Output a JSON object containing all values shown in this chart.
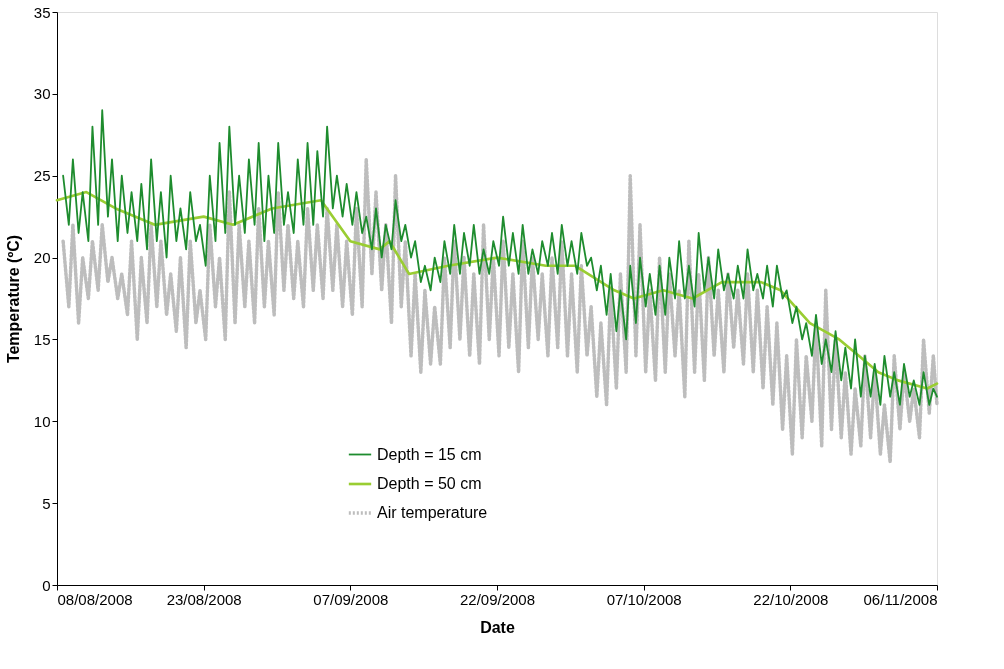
{
  "chart_data": {
    "type": "line",
    "xlabel": "Date",
    "ylabel": "Temperature (ºC)",
    "x": [
      "2008-08-08T15:00",
      "2008-08-09T05:00",
      "2008-08-09T15:00",
      "2008-08-10T05:00",
      "2008-08-10T15:00",
      "2008-08-11T05:00",
      "2008-08-11T15:00",
      "2008-08-12T05:00",
      "2008-08-12T15:00",
      "2008-08-13T05:00",
      "2008-08-13T15:00",
      "2008-08-14T05:00",
      "2008-08-14T15:00",
      "2008-08-15T05:00",
      "2008-08-15T15:00",
      "2008-08-16T05:00",
      "2008-08-16T15:00",
      "2008-08-17T05:00",
      "2008-08-17T15:00",
      "2008-08-18T05:00",
      "2008-08-18T15:00",
      "2008-08-19T05:00",
      "2008-08-19T15:00",
      "2008-08-20T05:00",
      "2008-08-20T15:00",
      "2008-08-21T05:00",
      "2008-08-21T15:00",
      "2008-08-22T05:00",
      "2008-08-22T15:00",
      "2008-08-23T05:00",
      "2008-08-23T15:00",
      "2008-08-24T05:00",
      "2008-08-24T15:00",
      "2008-08-25T05:00",
      "2008-08-25T15:00",
      "2008-08-26T05:00",
      "2008-08-26T15:00",
      "2008-08-27T05:00",
      "2008-08-27T15:00",
      "2008-08-28T05:00",
      "2008-08-28T15:00",
      "2008-08-29T05:00",
      "2008-08-29T15:00",
      "2008-08-30T05:00",
      "2008-08-30T15:00",
      "2008-08-31T05:00",
      "2008-08-31T15:00",
      "2008-09-01T05:00",
      "2008-09-01T15:00",
      "2008-09-02T05:00",
      "2008-09-02T15:00",
      "2008-09-03T05:00",
      "2008-09-03T15:00",
      "2008-09-04T05:00",
      "2008-09-04T15:00",
      "2008-09-05T05:00",
      "2008-09-05T15:00",
      "2008-09-06T05:00",
      "2008-09-06T15:00",
      "2008-09-07T05:00",
      "2008-09-07T15:00",
      "2008-09-08T05:00",
      "2008-09-08T15:00",
      "2008-09-09T05:00",
      "2008-09-09T15:00",
      "2008-09-10T05:00",
      "2008-09-10T15:00",
      "2008-09-11T05:00",
      "2008-09-11T15:00",
      "2008-09-12T05:00",
      "2008-09-12T15:00",
      "2008-09-13T05:00",
      "2008-09-13T15:00",
      "2008-09-14T05:00",
      "2008-09-14T15:00",
      "2008-09-15T05:00",
      "2008-09-15T15:00",
      "2008-09-16T05:00",
      "2008-09-16T15:00",
      "2008-09-17T05:00",
      "2008-09-17T15:00",
      "2008-09-18T05:00",
      "2008-09-18T15:00",
      "2008-09-19T05:00",
      "2008-09-19T15:00",
      "2008-09-20T05:00",
      "2008-09-20T15:00",
      "2008-09-21T05:00",
      "2008-09-21T15:00",
      "2008-09-22T05:00",
      "2008-09-22T15:00",
      "2008-09-23T05:00",
      "2008-09-23T15:00",
      "2008-09-24T05:00",
      "2008-09-24T15:00",
      "2008-09-25T05:00",
      "2008-09-25T15:00",
      "2008-09-26T05:00",
      "2008-09-26T15:00",
      "2008-09-27T05:00",
      "2008-09-27T15:00",
      "2008-09-28T05:00",
      "2008-09-28T15:00",
      "2008-09-29T05:00",
      "2008-09-29T15:00",
      "2008-09-30T05:00",
      "2008-09-30T15:00",
      "2008-10-01T05:00",
      "2008-10-01T15:00",
      "2008-10-02T05:00",
      "2008-10-02T15:00",
      "2008-10-03T05:00",
      "2008-10-03T15:00",
      "2008-10-04T05:00",
      "2008-10-04T15:00",
      "2008-10-05T05:00",
      "2008-10-05T15:00",
      "2008-10-06T05:00",
      "2008-10-06T15:00",
      "2008-10-07T05:00",
      "2008-10-07T15:00",
      "2008-10-08T05:00",
      "2008-10-08T15:00",
      "2008-10-09T05:00",
      "2008-10-09T15:00",
      "2008-10-10T05:00",
      "2008-10-10T15:00",
      "2008-10-11T05:00",
      "2008-10-11T15:00",
      "2008-10-12T05:00",
      "2008-10-12T15:00",
      "2008-10-13T05:00",
      "2008-10-13T15:00",
      "2008-10-14T05:00",
      "2008-10-14T15:00",
      "2008-10-15T05:00",
      "2008-10-15T15:00",
      "2008-10-16T05:00",
      "2008-10-16T15:00",
      "2008-10-17T05:00",
      "2008-10-17T15:00",
      "2008-10-18T05:00",
      "2008-10-18T15:00",
      "2008-10-19T05:00",
      "2008-10-19T15:00",
      "2008-10-20T05:00",
      "2008-10-20T15:00",
      "2008-10-21T05:00",
      "2008-10-21T15:00",
      "2008-10-22T05:00",
      "2008-10-22T15:00",
      "2008-10-23T05:00",
      "2008-10-23T15:00",
      "2008-10-24T05:00",
      "2008-10-24T15:00",
      "2008-10-25T05:00",
      "2008-10-25T15:00",
      "2008-10-26T05:00",
      "2008-10-26T15:00",
      "2008-10-27T05:00",
      "2008-10-27T15:00",
      "2008-10-28T05:00",
      "2008-10-28T15:00",
      "2008-10-29T05:00",
      "2008-10-29T15:00",
      "2008-10-30T05:00",
      "2008-10-30T15:00",
      "2008-10-31T05:00",
      "2008-10-31T15:00",
      "2008-11-01T05:00",
      "2008-11-01T15:00",
      "2008-11-02T05:00",
      "2008-11-02T15:00",
      "2008-11-03T05:00",
      "2008-11-03T15:00",
      "2008-11-04T05:00",
      "2008-11-04T15:00",
      "2008-11-05T05:00",
      "2008-11-05T15:00",
      "2008-11-06T00:00"
    ],
    "series": [
      {
        "name": "Depth = 15 cm",
        "color": "#1e8c2e",
        "line_style": "solid",
        "values": [
          25,
          22,
          26,
          21.5,
          24,
          21,
          28,
          22,
          29,
          22.5,
          26,
          21,
          25,
          21.5,
          24,
          21,
          24.5,
          20.5,
          26,
          21,
          24,
          20,
          25,
          21,
          23,
          20.5,
          24,
          21,
          22,
          19.5,
          25,
          21,
          27,
          21.5,
          28,
          22,
          25,
          21.5,
          26,
          22,
          27,
          21,
          25,
          21.5,
          27,
          22,
          24,
          21.5,
          26,
          22,
          27,
          22,
          26.5,
          22.5,
          28,
          23,
          25,
          22.5,
          24.5,
          22,
          24,
          21.5,
          22.5,
          20.5,
          23,
          20,
          22,
          20.5,
          23.5,
          21,
          22,
          20,
          21,
          18.5,
          19.5,
          18,
          20,
          18.5,
          21,
          19,
          22,
          19,
          21.5,
          19.5,
          22,
          19,
          20.5,
          19,
          21,
          19.5,
          22.5,
          19.5,
          21.5,
          19,
          22,
          19,
          20.5,
          19,
          21,
          19.5,
          21.5,
          19,
          22,
          19.5,
          21,
          19,
          21.5,
          19.5,
          20,
          18,
          19.5,
          16.5,
          19,
          15.5,
          18,
          15,
          19.5,
          16,
          20,
          17,
          19,
          16.5,
          19.5,
          16.5,
          20,
          17.5,
          21,
          17.5,
          19.5,
          17,
          21.5,
          18,
          20,
          17.5,
          20.5,
          18,
          19,
          17.5,
          19.5,
          17.5,
          20.5,
          18,
          19,
          17.5,
          19.5,
          17,
          19.5,
          17.5,
          18,
          16,
          17,
          15,
          16,
          14,
          16.5,
          13.5,
          15,
          13,
          15.5,
          12.5,
          14.5,
          12,
          15,
          11.5,
          14,
          11.5,
          13.5,
          11,
          14,
          11.5,
          13,
          11,
          13.5,
          11.5,
          12.5,
          11,
          13,
          11,
          12,
          11.5
        ]
      },
      {
        "name": "Depth = 50 cm",
        "color": "#9acd32",
        "line_style": "solid",
        "x": [
          "2008-08-08",
          "2008-08-11",
          "2008-08-14",
          "2008-08-18",
          "2008-08-23",
          "2008-08-26",
          "2008-08-30",
          "2008-09-04",
          "2008-09-07",
          "2008-09-10",
          "2008-09-11",
          "2008-09-13",
          "2008-09-17",
          "2008-09-22",
          "2008-09-27",
          "2008-09-30",
          "2008-10-04",
          "2008-10-06",
          "2008-10-09",
          "2008-10-12",
          "2008-10-15",
          "2008-10-19",
          "2008-10-21",
          "2008-10-24",
          "2008-10-27",
          "2008-10-29",
          "2008-10-31",
          "2008-11-02",
          "2008-11-05",
          "2008-11-06"
        ],
        "values": [
          23.5,
          24,
          23,
          22,
          22.5,
          22,
          23,
          23.5,
          21,
          20.5,
          21,
          19,
          19.5,
          20,
          19.5,
          19.5,
          18,
          17.5,
          18,
          17.5,
          18.5,
          18.5,
          18,
          16,
          15,
          14,
          13,
          12.5,
          12,
          12.3
        ]
      },
      {
        "name": "Air temperature",
        "color": "#bdbdbd",
        "line_style": "dotted",
        "values": [
          21,
          17,
          22,
          16,
          20,
          17.5,
          21,
          18,
          22,
          18.5,
          20,
          17.5,
          19,
          16.5,
          21,
          15,
          20,
          16,
          22,
          17,
          21,
          16.5,
          19,
          15.5,
          20,
          14.5,
          21,
          16,
          18,
          15,
          22,
          17,
          20,
          15,
          24,
          16,
          22,
          17,
          21,
          16,
          23,
          17,
          21,
          16.5,
          24,
          18,
          22,
          17.5,
          21,
          17,
          23,
          18,
          22,
          17.5,
          23,
          18,
          22,
          17,
          21,
          16.5,
          23,
          17,
          26,
          19,
          24,
          18,
          22,
          16,
          25,
          17,
          21,
          14,
          19,
          13,
          18,
          13.5,
          17,
          13.5,
          20,
          14.5,
          21,
          15,
          20,
          14,
          19,
          13.5,
          22,
          15,
          20,
          14,
          21,
          14.5,
          19,
          13,
          21,
          14.5,
          20,
          15,
          19,
          14,
          20,
          14.5,
          21,
          14,
          19,
          13,
          19.5,
          14,
          17,
          11.5,
          16,
          11,
          18,
          12,
          19,
          13,
          25,
          14,
          22,
          13,
          18,
          12.5,
          20,
          13,
          19,
          14,
          18,
          11.5,
          21,
          13,
          19,
          12.5,
          20,
          14,
          18,
          13,
          19,
          14.5,
          18,
          13.5,
          19,
          13,
          18,
          12,
          17,
          11,
          16,
          9.5,
          14,
          8,
          15,
          9,
          14,
          10,
          16,
          8.5,
          18,
          9.5,
          15,
          9,
          13,
          8,
          12,
          8.5,
          14,
          9,
          13,
          8,
          11,
          7.5,
          14,
          9.5,
          13,
          10,
          12,
          9,
          15,
          10.5,
          14,
          11
        ]
      }
    ],
    "xlim": [
      "2008-08-08",
      "2008-11-06"
    ],
    "xticks": [
      {
        "value": "2008-08-08",
        "label": "08/08/2008"
      },
      {
        "value": "2008-08-23",
        "label": "23/08/2008"
      },
      {
        "value": "2008-09-07",
        "label": "07/09/2008"
      },
      {
        "value": "2008-09-22",
        "label": "22/09/2008"
      },
      {
        "value": "2008-10-07",
        "label": "07/10/2008"
      },
      {
        "value": "2008-10-22",
        "label": "22/10/2008"
      },
      {
        "value": "2008-11-06",
        "label": "06/11/2008"
      }
    ],
    "ylim": [
      0,
      35
    ],
    "yticks": [
      0,
      5,
      10,
      15,
      20,
      25,
      30,
      35
    ],
    "grid": false,
    "legend": "bottom",
    "marker": "none"
  }
}
